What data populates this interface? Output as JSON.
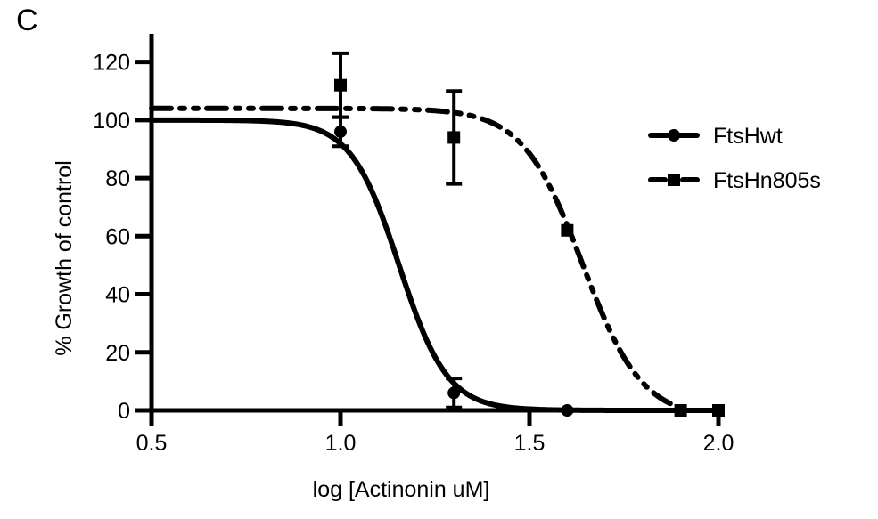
{
  "panel_label": "C",
  "chart_data": {
    "type": "line",
    "title": "",
    "xlabel": "log [Actinonin uM]",
    "ylabel": "% Growth of control",
    "xlim": [
      0.5,
      2.0
    ],
    "ylim": [
      0,
      130
    ],
    "xticks": [
      0.5,
      1.0,
      1.5,
      2.0
    ],
    "xtick_labels": [
      "0.5",
      "1.0",
      "1.5",
      "2.0"
    ],
    "yticks": [
      0,
      20,
      40,
      60,
      80,
      100,
      120
    ],
    "ytick_labels": [
      "0",
      "20",
      "40",
      "60",
      "80",
      "100",
      "120"
    ],
    "grid": false,
    "legend_position": "right",
    "series": [
      {
        "name": "FtsHwt",
        "marker": "circle",
        "line_style": "solid",
        "color": "#000000",
        "points": [
          {
            "x": 1.0,
            "y": 96,
            "err": 5
          },
          {
            "x": 1.3,
            "y": 6,
            "err": 5
          },
          {
            "x": 1.6,
            "y": 0,
            "err": 0
          },
          {
            "x": 1.9,
            "y": 0,
            "err": 0
          },
          {
            "x": 2.0,
            "y": 0,
            "err": 0
          }
        ],
        "fit": {
          "model": "sigmoidal dose-response",
          "top": 100,
          "bottom": 0,
          "logEC50": 1.155,
          "hillslope": -6.8
        }
      },
      {
        "name": "FtsHn805s",
        "marker": "square",
        "line_style": "dash-dot-dot",
        "color": "#000000",
        "points": [
          {
            "x": 1.0,
            "y": 112,
            "err": 11
          },
          {
            "x": 1.3,
            "y": 94,
            "err": 16
          },
          {
            "x": 1.6,
            "y": 62,
            "err": 0
          },
          {
            "x": 1.9,
            "y": 0,
            "err": 0
          },
          {
            "x": 2.0,
            "y": 0,
            "err": 0
          }
        ],
        "fit": {
          "model": "sigmoidal dose-response",
          "top": 104,
          "bottom": -3,
          "logEC50": 1.64,
          "hillslope": -5.5
        }
      }
    ]
  }
}
